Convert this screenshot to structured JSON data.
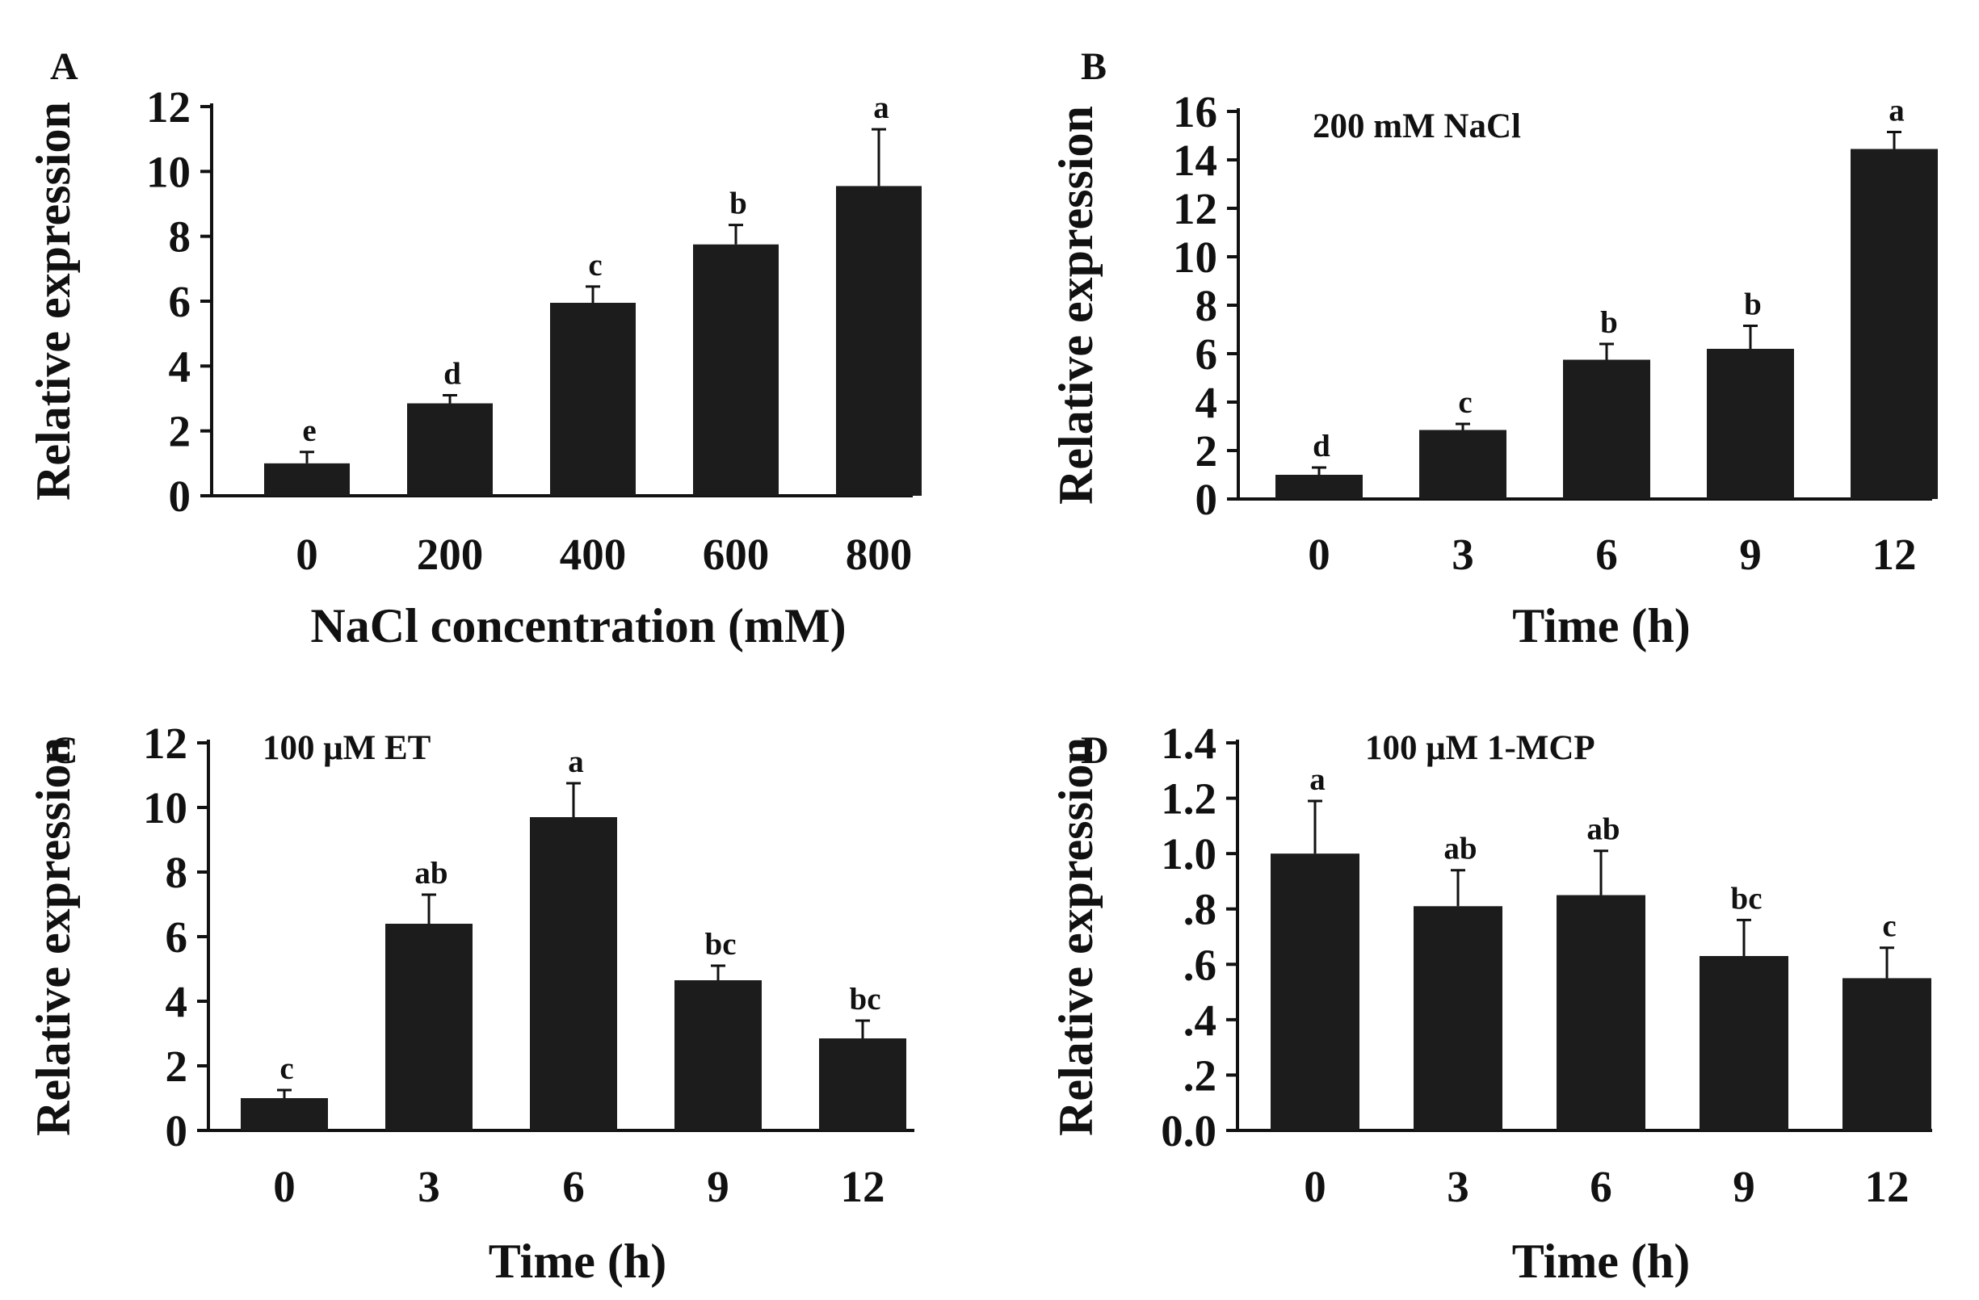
{
  "figure": {
    "colors": {
      "bar": "#1c1c1c",
      "axis": "#111111",
      "background": "#ffffff"
    }
  },
  "chart_data": [
    {
      "panel": "A",
      "type": "bar",
      "title": "",
      "annotation": "",
      "categories": [
        "0",
        "200",
        "400",
        "600",
        "800"
      ],
      "values": [
        1.0,
        2.85,
        5.95,
        7.75,
        9.55
      ],
      "errors": [
        0.35,
        0.25,
        0.5,
        0.6,
        1.75
      ],
      "significance": [
        "e",
        "d",
        "c",
        "b",
        "a"
      ],
      "xlabel": "NaCl concentration (mM)",
      "ylabel": "Relative expression",
      "ylim": [
        0,
        12
      ],
      "yticks": [
        0,
        2,
        4,
        6,
        8,
        10,
        12
      ],
      "ytick_labels": [
        "0",
        "2",
        "4",
        "6",
        "8",
        "10",
        "12"
      ]
    },
    {
      "panel": "B",
      "type": "bar",
      "title": "",
      "annotation": "200 mM NaCl",
      "categories": [
        "0",
        "3",
        "6",
        "9",
        "12"
      ],
      "values": [
        1.0,
        2.85,
        5.75,
        6.2,
        14.45
      ],
      "errors": [
        0.3,
        0.25,
        0.65,
        0.95,
        0.7
      ],
      "significance": [
        "d",
        "c",
        "b",
        "b",
        "a"
      ],
      "xlabel": "Time (h)",
      "ylabel": "Relative expression",
      "ylim": [
        0,
        16
      ],
      "yticks": [
        0,
        2,
        4,
        6,
        8,
        10,
        12,
        14,
        16
      ],
      "ytick_labels": [
        "0",
        "2",
        "4",
        "6",
        "8",
        "10",
        "12",
        "14",
        "16"
      ]
    },
    {
      "panel": "C",
      "type": "bar",
      "title": "",
      "annotation": "100 μM ET",
      "categories": [
        "0",
        "3",
        "6",
        "9",
        "12"
      ],
      "values": [
        1.0,
        6.4,
        9.7,
        4.65,
        2.85
      ],
      "errors": [
        0.25,
        0.9,
        1.05,
        0.45,
        0.55
      ],
      "significance": [
        "c",
        "ab",
        "a",
        "bc",
        "bc"
      ],
      "xlabel": "Time (h)",
      "ylabel": "Relative expression",
      "ylim": [
        0,
        12
      ],
      "yticks": [
        0,
        2,
        4,
        6,
        8,
        10,
        12
      ],
      "ytick_labels": [
        "0",
        "2",
        "4",
        "6",
        "8",
        "10",
        "12"
      ]
    },
    {
      "panel": "D",
      "type": "bar",
      "title": "",
      "annotation": "100 μM 1-MCP",
      "categories": [
        "0",
        "3",
        "6",
        "9",
        "12"
      ],
      "values": [
        1.0,
        0.81,
        0.85,
        0.63,
        0.55
      ],
      "errors": [
        0.19,
        0.13,
        0.16,
        0.13,
        0.11
      ],
      "significance": [
        "a",
        "ab",
        "ab",
        "bc",
        "c"
      ],
      "xlabel": "Time (h)",
      "ylabel": "Relative expression",
      "ylim": [
        0,
        1.4
      ],
      "yticks": [
        0,
        0.2,
        0.4,
        0.6,
        0.8,
        1.0,
        1.2,
        1.4
      ],
      "ytick_labels": [
        "0.0",
        ".2",
        ".4",
        ".6",
        ".8",
        "1.0",
        "1.2",
        "1.4"
      ]
    }
  ]
}
